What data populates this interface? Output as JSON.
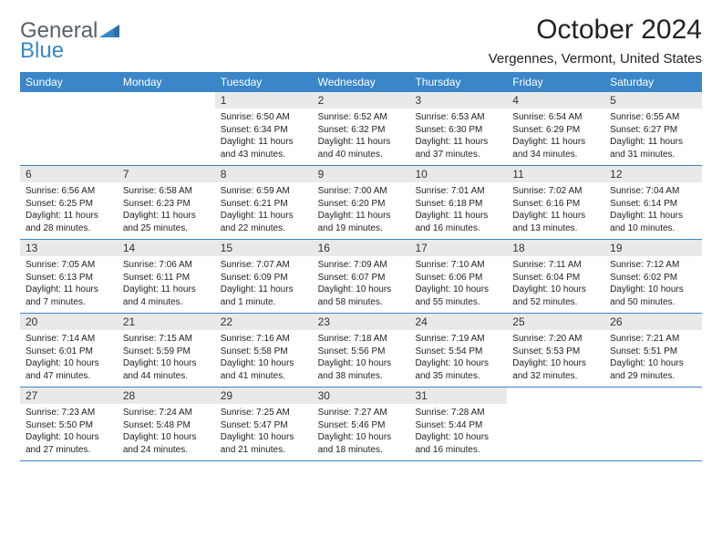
{
  "brand": {
    "word1": "General",
    "word2": "Blue"
  },
  "title": "October 2024",
  "location": "Vergennes, Vermont, United States",
  "colors": {
    "header_bg": "#3a86c8",
    "header_fg": "#ffffff",
    "daynum_bg": "#e9e9e9",
    "border": "#3a86c8",
    "logo_gray": "#57606a",
    "logo_blue": "#3a86c8",
    "text": "#222222",
    "background": "#ffffff"
  },
  "fonts": {
    "title_pt": 30,
    "location_pt": 15,
    "dow_pt": 12,
    "daynum_pt": 12,
    "body_pt": 10
  },
  "dayNames": [
    "Sunday",
    "Monday",
    "Tuesday",
    "Wednesday",
    "Thursday",
    "Friday",
    "Saturday"
  ],
  "weeks": [
    [
      {
        "n": "",
        "lines": []
      },
      {
        "n": "",
        "lines": []
      },
      {
        "n": "1",
        "lines": [
          "Sunrise: 6:50 AM",
          "Sunset: 6:34 PM",
          "Daylight: 11 hours",
          "and 43 minutes."
        ]
      },
      {
        "n": "2",
        "lines": [
          "Sunrise: 6:52 AM",
          "Sunset: 6:32 PM",
          "Daylight: 11 hours",
          "and 40 minutes."
        ]
      },
      {
        "n": "3",
        "lines": [
          "Sunrise: 6:53 AM",
          "Sunset: 6:30 PM",
          "Daylight: 11 hours",
          "and 37 minutes."
        ]
      },
      {
        "n": "4",
        "lines": [
          "Sunrise: 6:54 AM",
          "Sunset: 6:29 PM",
          "Daylight: 11 hours",
          "and 34 minutes."
        ]
      },
      {
        "n": "5",
        "lines": [
          "Sunrise: 6:55 AM",
          "Sunset: 6:27 PM",
          "Daylight: 11 hours",
          "and 31 minutes."
        ]
      }
    ],
    [
      {
        "n": "6",
        "lines": [
          "Sunrise: 6:56 AM",
          "Sunset: 6:25 PM",
          "Daylight: 11 hours",
          "and 28 minutes."
        ]
      },
      {
        "n": "7",
        "lines": [
          "Sunrise: 6:58 AM",
          "Sunset: 6:23 PM",
          "Daylight: 11 hours",
          "and 25 minutes."
        ]
      },
      {
        "n": "8",
        "lines": [
          "Sunrise: 6:59 AM",
          "Sunset: 6:21 PM",
          "Daylight: 11 hours",
          "and 22 minutes."
        ]
      },
      {
        "n": "9",
        "lines": [
          "Sunrise: 7:00 AM",
          "Sunset: 6:20 PM",
          "Daylight: 11 hours",
          "and 19 minutes."
        ]
      },
      {
        "n": "10",
        "lines": [
          "Sunrise: 7:01 AM",
          "Sunset: 6:18 PM",
          "Daylight: 11 hours",
          "and 16 minutes."
        ]
      },
      {
        "n": "11",
        "lines": [
          "Sunrise: 7:02 AM",
          "Sunset: 6:16 PM",
          "Daylight: 11 hours",
          "and 13 minutes."
        ]
      },
      {
        "n": "12",
        "lines": [
          "Sunrise: 7:04 AM",
          "Sunset: 6:14 PM",
          "Daylight: 11 hours",
          "and 10 minutes."
        ]
      }
    ],
    [
      {
        "n": "13",
        "lines": [
          "Sunrise: 7:05 AM",
          "Sunset: 6:13 PM",
          "Daylight: 11 hours",
          "and 7 minutes."
        ]
      },
      {
        "n": "14",
        "lines": [
          "Sunrise: 7:06 AM",
          "Sunset: 6:11 PM",
          "Daylight: 11 hours",
          "and 4 minutes."
        ]
      },
      {
        "n": "15",
        "lines": [
          "Sunrise: 7:07 AM",
          "Sunset: 6:09 PM",
          "Daylight: 11 hours",
          "and 1 minute."
        ]
      },
      {
        "n": "16",
        "lines": [
          "Sunrise: 7:09 AM",
          "Sunset: 6:07 PM",
          "Daylight: 10 hours",
          "and 58 minutes."
        ]
      },
      {
        "n": "17",
        "lines": [
          "Sunrise: 7:10 AM",
          "Sunset: 6:06 PM",
          "Daylight: 10 hours",
          "and 55 minutes."
        ]
      },
      {
        "n": "18",
        "lines": [
          "Sunrise: 7:11 AM",
          "Sunset: 6:04 PM",
          "Daylight: 10 hours",
          "and 52 minutes."
        ]
      },
      {
        "n": "19",
        "lines": [
          "Sunrise: 7:12 AM",
          "Sunset: 6:02 PM",
          "Daylight: 10 hours",
          "and 50 minutes."
        ]
      }
    ],
    [
      {
        "n": "20",
        "lines": [
          "Sunrise: 7:14 AM",
          "Sunset: 6:01 PM",
          "Daylight: 10 hours",
          "and 47 minutes."
        ]
      },
      {
        "n": "21",
        "lines": [
          "Sunrise: 7:15 AM",
          "Sunset: 5:59 PM",
          "Daylight: 10 hours",
          "and 44 minutes."
        ]
      },
      {
        "n": "22",
        "lines": [
          "Sunrise: 7:16 AM",
          "Sunset: 5:58 PM",
          "Daylight: 10 hours",
          "and 41 minutes."
        ]
      },
      {
        "n": "23",
        "lines": [
          "Sunrise: 7:18 AM",
          "Sunset: 5:56 PM",
          "Daylight: 10 hours",
          "and 38 minutes."
        ]
      },
      {
        "n": "24",
        "lines": [
          "Sunrise: 7:19 AM",
          "Sunset: 5:54 PM",
          "Daylight: 10 hours",
          "and 35 minutes."
        ]
      },
      {
        "n": "25",
        "lines": [
          "Sunrise: 7:20 AM",
          "Sunset: 5:53 PM",
          "Daylight: 10 hours",
          "and 32 minutes."
        ]
      },
      {
        "n": "26",
        "lines": [
          "Sunrise: 7:21 AM",
          "Sunset: 5:51 PM",
          "Daylight: 10 hours",
          "and 29 minutes."
        ]
      }
    ],
    [
      {
        "n": "27",
        "lines": [
          "Sunrise: 7:23 AM",
          "Sunset: 5:50 PM",
          "Daylight: 10 hours",
          "and 27 minutes."
        ]
      },
      {
        "n": "28",
        "lines": [
          "Sunrise: 7:24 AM",
          "Sunset: 5:48 PM",
          "Daylight: 10 hours",
          "and 24 minutes."
        ]
      },
      {
        "n": "29",
        "lines": [
          "Sunrise: 7:25 AM",
          "Sunset: 5:47 PM",
          "Daylight: 10 hours",
          "and 21 minutes."
        ]
      },
      {
        "n": "30",
        "lines": [
          "Sunrise: 7:27 AM",
          "Sunset: 5:46 PM",
          "Daylight: 10 hours",
          "and 18 minutes."
        ]
      },
      {
        "n": "31",
        "lines": [
          "Sunrise: 7:28 AM",
          "Sunset: 5:44 PM",
          "Daylight: 10 hours",
          "and 16 minutes."
        ]
      },
      {
        "n": "",
        "lines": []
      },
      {
        "n": "",
        "lines": []
      }
    ]
  ]
}
